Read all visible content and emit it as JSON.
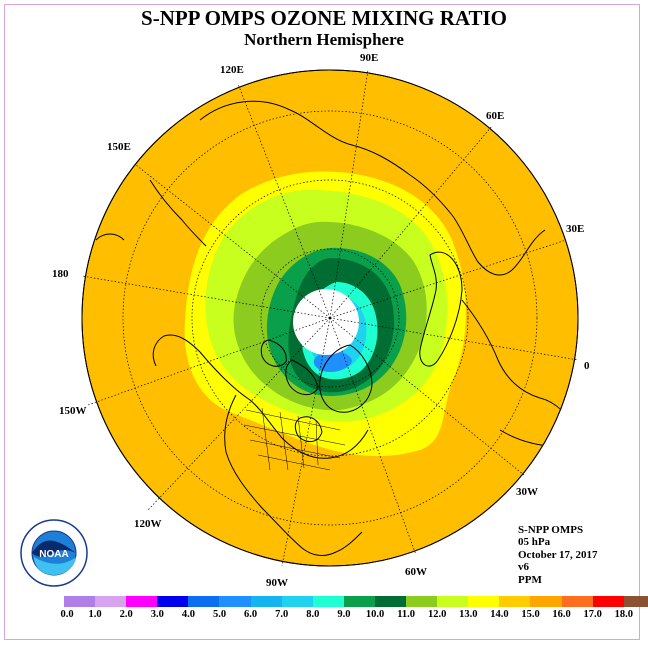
{
  "header": {
    "title": "S-NPP OMPS OZONE MIXING RATIO",
    "subtitle": "Northern Hemisphere"
  },
  "map": {
    "projection": "north-polar-stereographic",
    "longitude_labels": [
      "90E",
      "60E",
      "30E",
      "0",
      "30W",
      "60W",
      "90W",
      "120W",
      "150W",
      "180",
      "150E",
      "120E"
    ]
  },
  "info": {
    "instrument": "S-NPP OMPS",
    "level": "05 hPa",
    "date": "October 17, 2017",
    "version": "v6",
    "units": "PPM"
  },
  "logo": {
    "text": "NOAA",
    "ring_text": "NATIONAL OCEANIC AND ATMOSPHERIC ADMINISTRATION · U.S. DEPARTMENT OF COMMERCE"
  },
  "colorbar": {
    "ticks": [
      "0.0",
      "1.0",
      "2.0",
      "3.0",
      "4.0",
      "5.0",
      "6.0",
      "7.0",
      "8.0",
      "9.0",
      "10.0",
      "11.0",
      "12.0",
      "13.0",
      "14.0",
      "15.0",
      "16.0",
      "17.0",
      "18.0"
    ],
    "colors": [
      "#b07ee8",
      "#d7a3ef",
      "#ff00ff",
      "#0000ee",
      "#0a6ef0",
      "#1e90ff",
      "#14b4f0",
      "#1ed2f0",
      "#1effd2",
      "#0aa04b",
      "#006e32",
      "#8ccc1e",
      "#c8ff1e",
      "#ffff00",
      "#ffcc00",
      "#ffa500",
      "#ff6e1e",
      "#ff0000",
      "#8c5032"
    ]
  }
}
